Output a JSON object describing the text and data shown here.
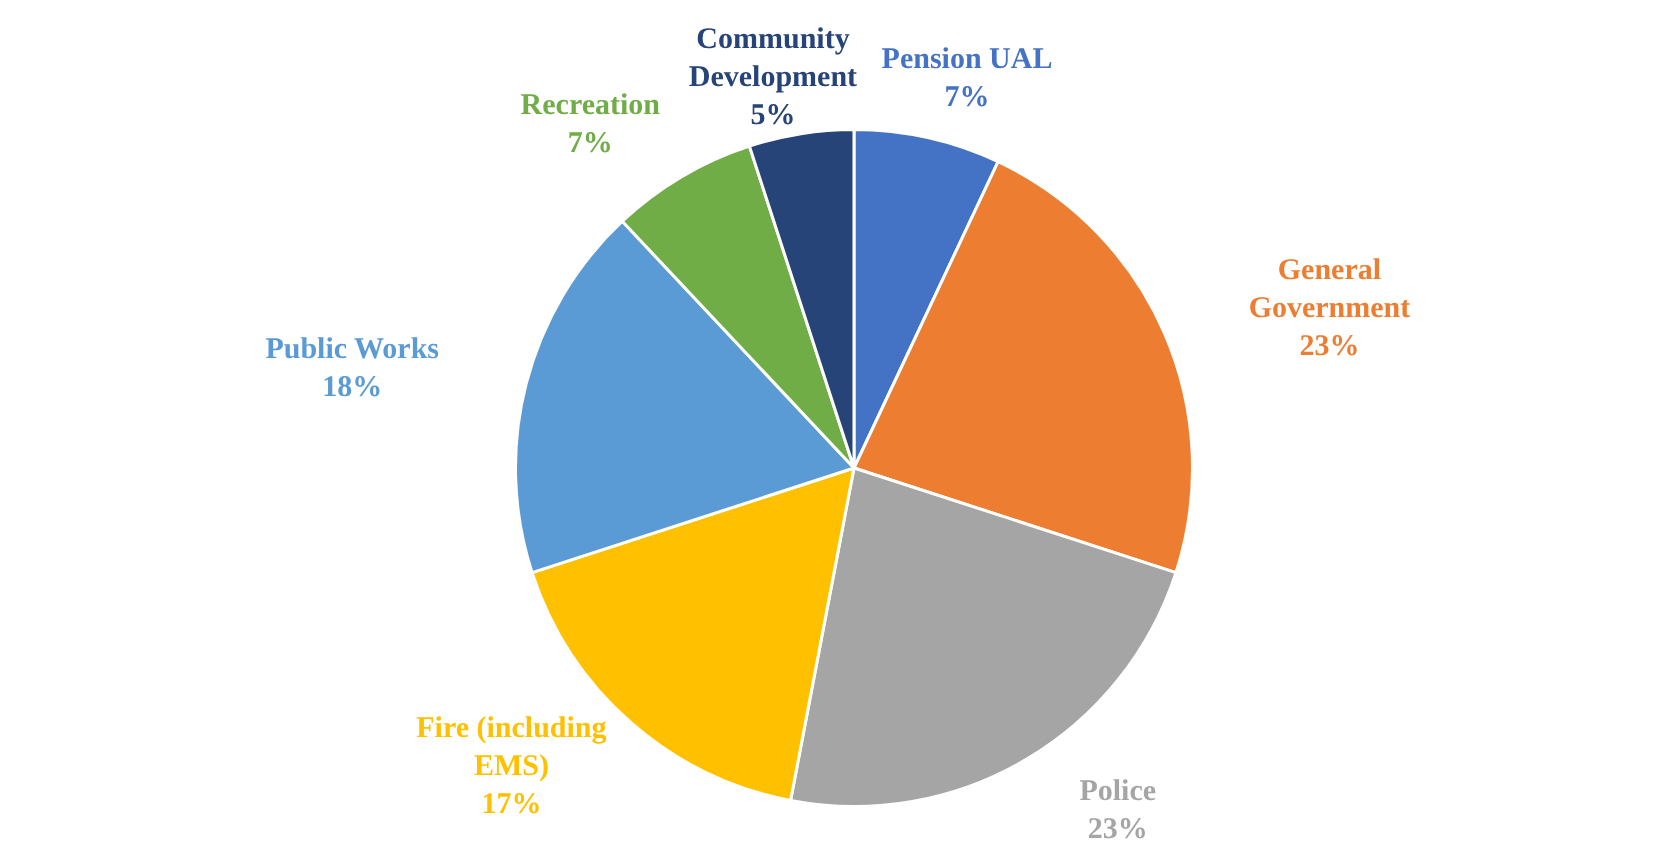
{
  "chart_data": {
    "type": "pie",
    "categories": [
      "Pension UAL",
      "General Government",
      "Police",
      "Fire (including EMS)",
      "Public Works",
      "Recreation",
      "Community Development"
    ],
    "values": [
      7,
      23,
      23,
      17,
      18,
      7,
      5
    ],
    "colors": [
      "#4472c4",
      "#ed7d31",
      "#a5a5a5",
      "#ffc000",
      "#5b9bd5",
      "#70ad47",
      "#264478"
    ],
    "value_labels": [
      "7%",
      "23%",
      "23%",
      "17%",
      "18%",
      "7%",
      "5%"
    ],
    "legend": false
  }
}
